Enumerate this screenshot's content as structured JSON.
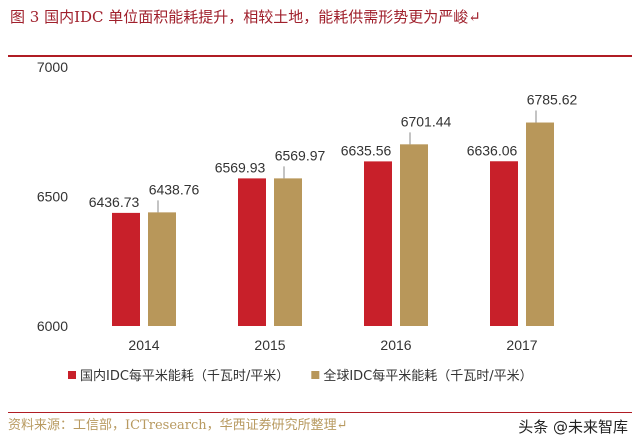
{
  "title": "图 3 国内IDC 单位面积能耗提升，相较土地，能耗供需形势更为严峻↵",
  "source": "资料来源：工信部，ICTresearch，华西证券研究所整理↵",
  "watermark": "头条 @未来智库",
  "colors": {
    "title": "#a0202c",
    "series1": "#c8202a",
    "series2": "#b8975a",
    "rule": "#b01c24"
  },
  "chart_data": {
    "type": "bar",
    "categories": [
      "2014",
      "2015",
      "2016",
      "2017"
    ],
    "series": [
      {
        "name": "国内IDC每平米能耗（千瓦时/平米）",
        "values": [
          6436.73,
          6569.93,
          6635.56,
          6636.06
        ],
        "color": "#c8202a"
      },
      {
        "name": "全球IDC每平米能耗（千瓦时/平米）",
        "values": [
          6438.76,
          6569.97,
          6701.44,
          6785.62
        ],
        "color": "#b8975a"
      }
    ],
    "yticks": [
      "6000",
      "6500",
      "7000"
    ],
    "ylim": [
      6000,
      7000
    ],
    "legend_position": "bottom",
    "grid": false
  }
}
